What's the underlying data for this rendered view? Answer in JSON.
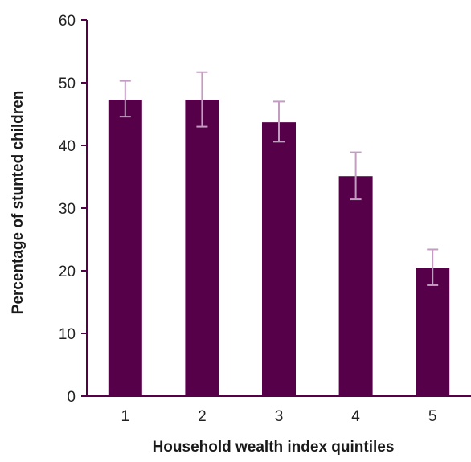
{
  "colors": {
    "bar": "#560049",
    "axis": "#560049",
    "error_bar": "#c39dc1"
  },
  "chart_data": {
    "type": "bar",
    "title": "",
    "xlabel": "Household wealth index quintiles",
    "ylabel": "Percentage of stunted children",
    "categories": [
      "1",
      "2",
      "3",
      "4",
      "5"
    ],
    "values": [
      47.3,
      47.3,
      43.7,
      35.1,
      20.4
    ],
    "error_low": [
      44.6,
      43.0,
      40.6,
      31.4,
      17.7
    ],
    "error_high": [
      50.3,
      51.7,
      47.0,
      38.9,
      23.4
    ],
    "ylim": [
      0,
      60
    ],
    "yticks": [
      "0",
      "10",
      "20",
      "30",
      "40",
      "50",
      "60"
    ],
    "grid": false,
    "legend": "none"
  }
}
